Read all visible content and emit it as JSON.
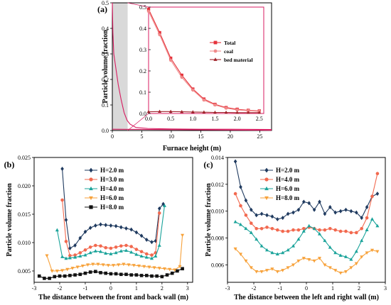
{
  "chart_data": [
    {
      "panel": "(a)",
      "type": "line",
      "xlabel": "Furnace height (m)",
      "ylabel": "Particle volume fraction",
      "xlim": [
        0,
        27
      ],
      "ylim": [
        0,
        0.5
      ],
      "xticks": [
        0,
        5,
        10,
        15,
        20,
        25
      ],
      "yticks": [
        0.0,
        0.1,
        0.2,
        0.3,
        0.4,
        0.5
      ],
      "shaded_region": [
        0,
        2.6
      ],
      "series": [
        {
          "name": "Total",
          "color": "#d81b60",
          "x": [
            0,
            0.1,
            0.25,
            0.5,
            1,
            1.5,
            2,
            2.5,
            3,
            4,
            6,
            10,
            15,
            20,
            27
          ],
          "y": [
            0.5,
            0.38,
            0.3,
            0.26,
            0.18,
            0.12,
            0.07,
            0.04,
            0.025,
            0.012,
            0.008,
            0.006,
            0.005,
            0.005,
            0.004
          ]
        },
        {
          "name": "bed material",
          "color": "#d81b60",
          "x": [
            0,
            27
          ],
          "y": [
            0.005,
            0.001
          ]
        }
      ],
      "inset": {
        "xlim": [
          0,
          2.6
        ],
        "ylim": [
          0,
          0.5
        ],
        "xticks": [
          0.0,
          0.5,
          1.0,
          1.5,
          2.0,
          2.5
        ],
        "yticks": [
          0.0,
          0.1,
          0.2,
          0.3,
          0.4,
          0.5
        ],
        "series": [
          {
            "name": "Total",
            "color": "#e5323b",
            "marker": "square",
            "x": [
              0,
              0.25,
              0.5,
              0.75,
              1.0,
              1.25,
              1.5,
              1.75,
              2.0,
              2.25,
              2.5
            ],
            "y": [
              0.49,
              0.38,
              0.26,
              0.18,
              0.115,
              0.068,
              0.043,
              0.028,
              0.02,
              0.015,
              0.012
            ]
          },
          {
            "name": "coal",
            "color": "#f08a8a",
            "marker": "circle",
            "x": [
              0,
              0.25,
              0.5,
              0.75,
              1.0,
              1.25,
              1.5,
              1.75,
              2.0,
              2.25,
              2.5
            ],
            "y": [
              0.48,
              0.37,
              0.25,
              0.17,
              0.11,
              0.063,
              0.04,
              0.025,
              0.017,
              0.013,
              0.01
            ]
          },
          {
            "name": "bed material",
            "color": "#a0222a",
            "marker": "triangle",
            "x": [
              0,
              0.25,
              0.5,
              0.75,
              1.0,
              1.25,
              1.5,
              1.75,
              2.0,
              2.25,
              2.5
            ],
            "y": [
              0.008,
              0.009,
              0.009,
              0.008,
              0.007,
              0.006,
              0.005,
              0.005,
              0.004,
              0.004,
              0.004
            ]
          }
        ]
      }
    },
    {
      "panel": "(b)",
      "type": "line",
      "xlabel": "The distance between the front  and back wall (m)",
      "ylabel": "Particle volume fraction",
      "xlim": [
        -3,
        3.2
      ],
      "ylim": [
        0.003,
        0.025
      ],
      "xticks": [
        -3,
        -2,
        -1,
        0,
        1,
        2,
        3
      ],
      "yticks": [
        0.005,
        0.01,
        0.015,
        0.02,
        0.025
      ],
      "series": [
        {
          "name": "H=2.0  m",
          "color": "#1f3a5f",
          "marker": "diamond",
          "x": [
            -1.9,
            -1.75,
            -1.6,
            -1.4,
            -1.2,
            -1.0,
            -0.8,
            -0.6,
            -0.4,
            -0.2,
            0.0,
            0.2,
            0.4,
            0.6,
            0.8,
            1.0,
            1.2,
            1.4,
            1.6,
            1.75,
            1.9,
            2.05
          ],
          "y": [
            0.023,
            0.014,
            0.009,
            0.0095,
            0.0108,
            0.0119,
            0.0126,
            0.013,
            0.0132,
            0.0131,
            0.013,
            0.0129,
            0.0127,
            0.0125,
            0.0123,
            0.0118,
            0.0112,
            0.0105,
            0.0101,
            0.0103,
            0.016,
            0.0168
          ]
        },
        {
          "name": "H=3.0  m",
          "color": "#f2694f",
          "marker": "circle",
          "x": [
            -1.9,
            -1.75,
            -1.6,
            -1.4,
            -1.2,
            -1.0,
            -0.8,
            -0.6,
            -0.4,
            -0.2,
            0.0,
            0.2,
            0.4,
            0.6,
            0.8,
            1.0,
            1.2,
            1.4,
            1.6,
            1.75,
            1.9
          ],
          "y": [
            0.0175,
            0.0102,
            0.0077,
            0.0078,
            0.0082,
            0.0087,
            0.0092,
            0.0095,
            0.0094,
            0.0091,
            0.009,
            0.0092,
            0.0094,
            0.0095,
            0.0093,
            0.0088,
            0.0084,
            0.008,
            0.0078,
            0.0082,
            0.0152
          ]
        },
        {
          "name": "H=4.0  m",
          "color": "#1aa39a",
          "marker": "triangle",
          "x": [
            -2.1,
            -1.9,
            -1.75,
            -1.6,
            -1.4,
            -1.2,
            -1.0,
            -0.8,
            -0.6,
            -0.4,
            -0.2,
            0.0,
            0.2,
            0.4,
            0.6,
            0.8,
            1.0,
            1.2,
            1.4,
            1.6,
            1.75,
            1.9,
            2.1
          ],
          "y": [
            0.0122,
            0.0075,
            0.0072,
            0.0073,
            0.0074,
            0.0076,
            0.0078,
            0.0082,
            0.0085,
            0.0084,
            0.0081,
            0.008,
            0.0082,
            0.0085,
            0.0086,
            0.0083,
            0.0079,
            0.0076,
            0.0074,
            0.0072,
            0.0076,
            0.0095,
            0.0165
          ]
        },
        {
          "name": "H=6.0  m",
          "color": "#f7a23b",
          "marker": "triangle-down",
          "x": [
            -2.5,
            -2.3,
            -2.1,
            -1.9,
            -1.7,
            -1.5,
            -1.3,
            -1.1,
            -0.9,
            -0.7,
            -0.5,
            -0.3,
            -0.1,
            0.1,
            0.3,
            0.5,
            0.7,
            0.9,
            1.1,
            1.3,
            1.5,
            1.7,
            1.9,
            2.1,
            2.3,
            2.5,
            2.7,
            2.8
          ],
          "y": [
            0.0077,
            0.005,
            0.005,
            0.0051,
            0.0053,
            0.0055,
            0.0057,
            0.0059,
            0.0061,
            0.0062,
            0.0062,
            0.0061,
            0.006,
            0.006,
            0.0061,
            0.0062,
            0.0061,
            0.006,
            0.0059,
            0.0058,
            0.0057,
            0.0056,
            0.0055,
            0.0054,
            0.0053,
            0.0052,
            0.0058,
            0.0113
          ]
        },
        {
          "name": "H=8.0  m",
          "color": "#111111",
          "marker": "square",
          "x": [
            -2.8,
            -2.6,
            -2.4,
            -2.2,
            -2.0,
            -1.8,
            -1.6,
            -1.4,
            -1.2,
            -1.0,
            -0.8,
            -0.6,
            -0.4,
            -0.2,
            0.0,
            0.2,
            0.4,
            0.6,
            0.8,
            1.0,
            1.2,
            1.4,
            1.6,
            1.8,
            2.0,
            2.2,
            2.4,
            2.6,
            2.8
          ],
          "y": [
            0.0041,
            0.0037,
            0.0037,
            0.004,
            0.0041,
            0.0041,
            0.0042,
            0.0043,
            0.0044,
            0.0046,
            0.0048,
            0.0049,
            0.0047,
            0.0046,
            0.0045,
            0.0045,
            0.0044,
            0.0044,
            0.0043,
            0.0043,
            0.0042,
            0.0042,
            0.0041,
            0.0041,
            0.004,
            0.0043,
            0.0046,
            0.005,
            0.0054
          ]
        }
      ]
    },
    {
      "panel": "(c)",
      "type": "line",
      "xlabel": "The distance between the left  and right wall (m)",
      "ylabel": "Particle volume fraction",
      "xlim": [
        -3,
        3
      ],
      "ylim": [
        0.0047,
        0.014
      ],
      "xticks": [
        -3,
        -2,
        -1,
        0,
        1,
        2,
        3
      ],
      "yticks": [
        0.006,
        0.008,
        0.01,
        0.012,
        0.014
      ],
      "series": [
        {
          "name": "H=2.0  m",
          "color": "#1f3a5f",
          "marker": "diamond",
          "x": [
            -2.7,
            -2.5,
            -2.3,
            -2.1,
            -1.9,
            -1.7,
            -1.5,
            -1.3,
            -1.1,
            -0.9,
            -0.7,
            -0.5,
            -0.3,
            -0.1,
            0.1,
            0.3,
            0.5,
            0.7,
            0.9,
            1.1,
            1.3,
            1.5,
            1.7,
            1.9,
            2.1,
            2.3,
            2.5,
            2.7
          ],
          "y": [
            0.0137,
            0.0118,
            0.0108,
            0.0101,
            0.0097,
            0.0098,
            0.0097,
            0.0096,
            0.0094,
            0.0095,
            0.0098,
            0.0099,
            0.0101,
            0.0107,
            0.0106,
            0.0101,
            0.0107,
            0.0098,
            0.0103,
            0.0099,
            0.01,
            0.0101,
            0.01,
            0.0099,
            0.0095,
            0.0103,
            0.0111,
            0.0113
          ]
        },
        {
          "name": "H=4.0  m",
          "color": "#f2694f",
          "marker": "circle",
          "x": [
            -2.7,
            -2.5,
            -2.3,
            -2.1,
            -1.9,
            -1.7,
            -1.5,
            -1.3,
            -1.1,
            -0.9,
            -0.7,
            -0.5,
            -0.3,
            -0.1,
            0.1,
            0.3,
            0.5,
            0.7,
            0.9,
            1.1,
            1.3,
            1.5,
            1.7,
            1.9,
            2.1,
            2.3,
            2.5,
            2.7
          ],
          "y": [
            0.0113,
            0.0104,
            0.0097,
            0.0091,
            0.0087,
            0.0087,
            0.0088,
            0.0087,
            0.0086,
            0.0085,
            0.0085,
            0.0086,
            0.0086,
            0.0087,
            0.0088,
            0.0087,
            0.0086,
            0.0086,
            0.0087,
            0.0086,
            0.0085,
            0.0085,
            0.0084,
            0.0084,
            0.0087,
            0.0095,
            0.0111,
            0.0128
          ]
        },
        {
          "name": "H=6.0  m",
          "color": "#1aa39a",
          "marker": "triangle",
          "x": [
            -2.7,
            -2.5,
            -2.3,
            -2.1,
            -1.9,
            -1.7,
            -1.5,
            -1.3,
            -1.1,
            -0.9,
            -0.7,
            -0.5,
            -0.3,
            -0.1,
            0.1,
            0.3,
            0.5,
            0.7,
            0.9,
            1.1,
            1.3,
            1.5,
            1.7,
            1.9,
            2.1,
            2.3,
            2.5,
            2.7
          ],
          "y": [
            0.0092,
            0.009,
            0.0087,
            0.0084,
            0.0079,
            0.0074,
            0.0071,
            0.0069,
            0.0068,
            0.0069,
            0.0071,
            0.0074,
            0.0079,
            0.0085,
            0.0089,
            0.0087,
            0.0083,
            0.0078,
            0.0073,
            0.0069,
            0.0067,
            0.0066,
            0.0064,
            0.007,
            0.0078,
            0.0086,
            0.0094,
            0.0089
          ]
        },
        {
          "name": "H=8.0  m",
          "color": "#f7a23b",
          "marker": "triangle-down",
          "x": [
            -2.7,
            -2.5,
            -2.3,
            -2.1,
            -1.9,
            -1.7,
            -1.5,
            -1.3,
            -1.1,
            -0.9,
            -0.7,
            -0.5,
            -0.3,
            -0.1,
            0.1,
            0.3,
            0.5,
            0.7,
            0.9,
            1.1,
            1.3,
            1.5,
            1.7,
            1.9,
            2.1,
            2.3,
            2.5,
            2.7
          ],
          "y": [
            0.0072,
            0.0068,
            0.0063,
            0.0058,
            0.0055,
            0.0055,
            0.0056,
            0.0057,
            0.0055,
            0.0056,
            0.0058,
            0.006,
            0.0063,
            0.0065,
            0.0064,
            0.0063,
            0.0065,
            0.006,
            0.0058,
            0.0056,
            0.0054,
            0.0055,
            0.0058,
            0.0061,
            0.0066,
            0.0069,
            0.0071,
            0.007
          ]
        }
      ]
    }
  ]
}
